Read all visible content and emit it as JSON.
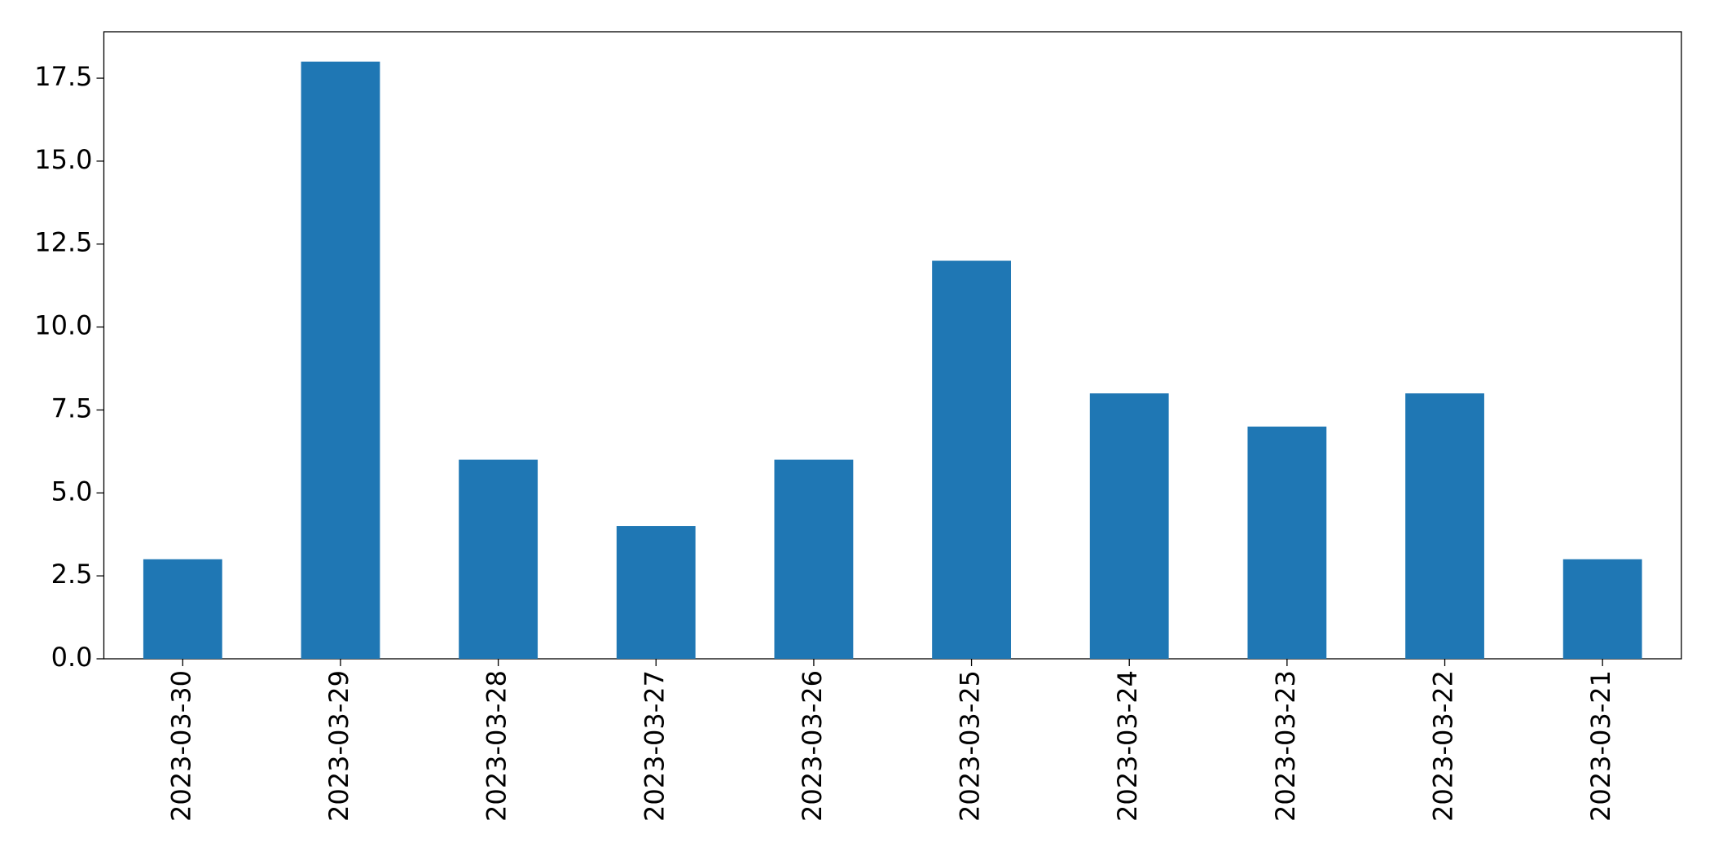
{
  "chart_data": {
    "type": "bar",
    "categories": [
      "2023-03-30",
      "2023-03-29",
      "2023-03-28",
      "2023-03-27",
      "2023-03-26",
      "2023-03-25",
      "2023-03-24",
      "2023-03-23",
      "2023-03-22",
      "2023-03-21"
    ],
    "values": [
      3,
      18,
      6,
      4,
      6,
      12,
      8,
      7,
      8,
      3
    ],
    "color": "#1f77b4",
    "ylim": [
      0,
      18.9
    ],
    "yticks": [
      {
        "value": 0,
        "label": "0.0"
      },
      {
        "value": 2.5,
        "label": "2.5"
      },
      {
        "value": 5,
        "label": "5.0"
      },
      {
        "value": 7.5,
        "label": "7.5"
      },
      {
        "value": 10,
        "label": "10.0"
      },
      {
        "value": 12.5,
        "label": "12.5"
      },
      {
        "value": 15,
        "label": "15.0"
      },
      {
        "value": 17.5,
        "label": "17.5"
      }
    ],
    "grid": false
  }
}
